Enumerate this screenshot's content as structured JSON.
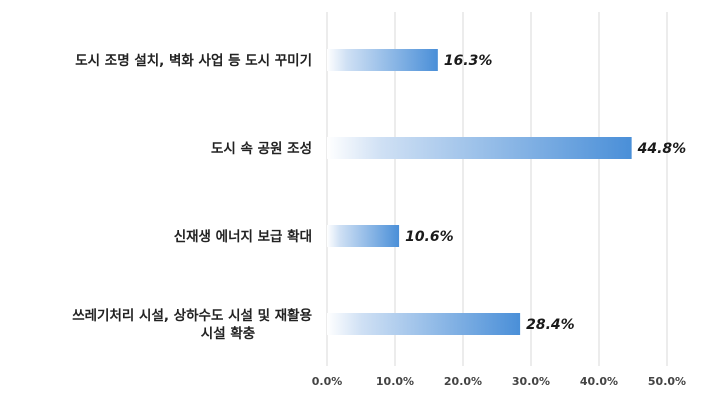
{
  "chart_data": {
    "type": "bar",
    "orientation": "horizontal",
    "categories": [
      "도시 조명 설치, 벽화 사업 등 도시 꾸미기",
      "도시 속 공원 조성",
      "신재생 에너지 보급 확대",
      "쓰레기처리 시설, 상하수도 시설 및 재활용 시설 확충"
    ],
    "category_lines": [
      [
        "도시 조명 설치, 벽화 사업 등 도시 꾸미기"
      ],
      [
        "도시 속 공원 조성"
      ],
      [
        "신재생 에너지 보급 확대"
      ],
      [
        "쓰레기처리 시설, 상하수도 시설 및 재활용",
        "시설 확충"
      ]
    ],
    "values": [
      16.3,
      44.8,
      10.6,
      28.4
    ],
    "value_labels": [
      "16.3%",
      "44.8%",
      "10.6%",
      "28.4%"
    ],
    "xlim": [
      0,
      50
    ],
    "x_ticks": [
      0,
      10,
      20,
      30,
      40,
      50
    ],
    "x_tick_labels": [
      "0.0%",
      "10.0%",
      "20.0%",
      "30.0%",
      "40.0%",
      "50.0%"
    ],
    "grid": true,
    "legend": "none",
    "colors": {
      "bar_start": "#ffffff",
      "bar_end": "#4a8fd8",
      "grid": "#d9d9d9"
    }
  }
}
